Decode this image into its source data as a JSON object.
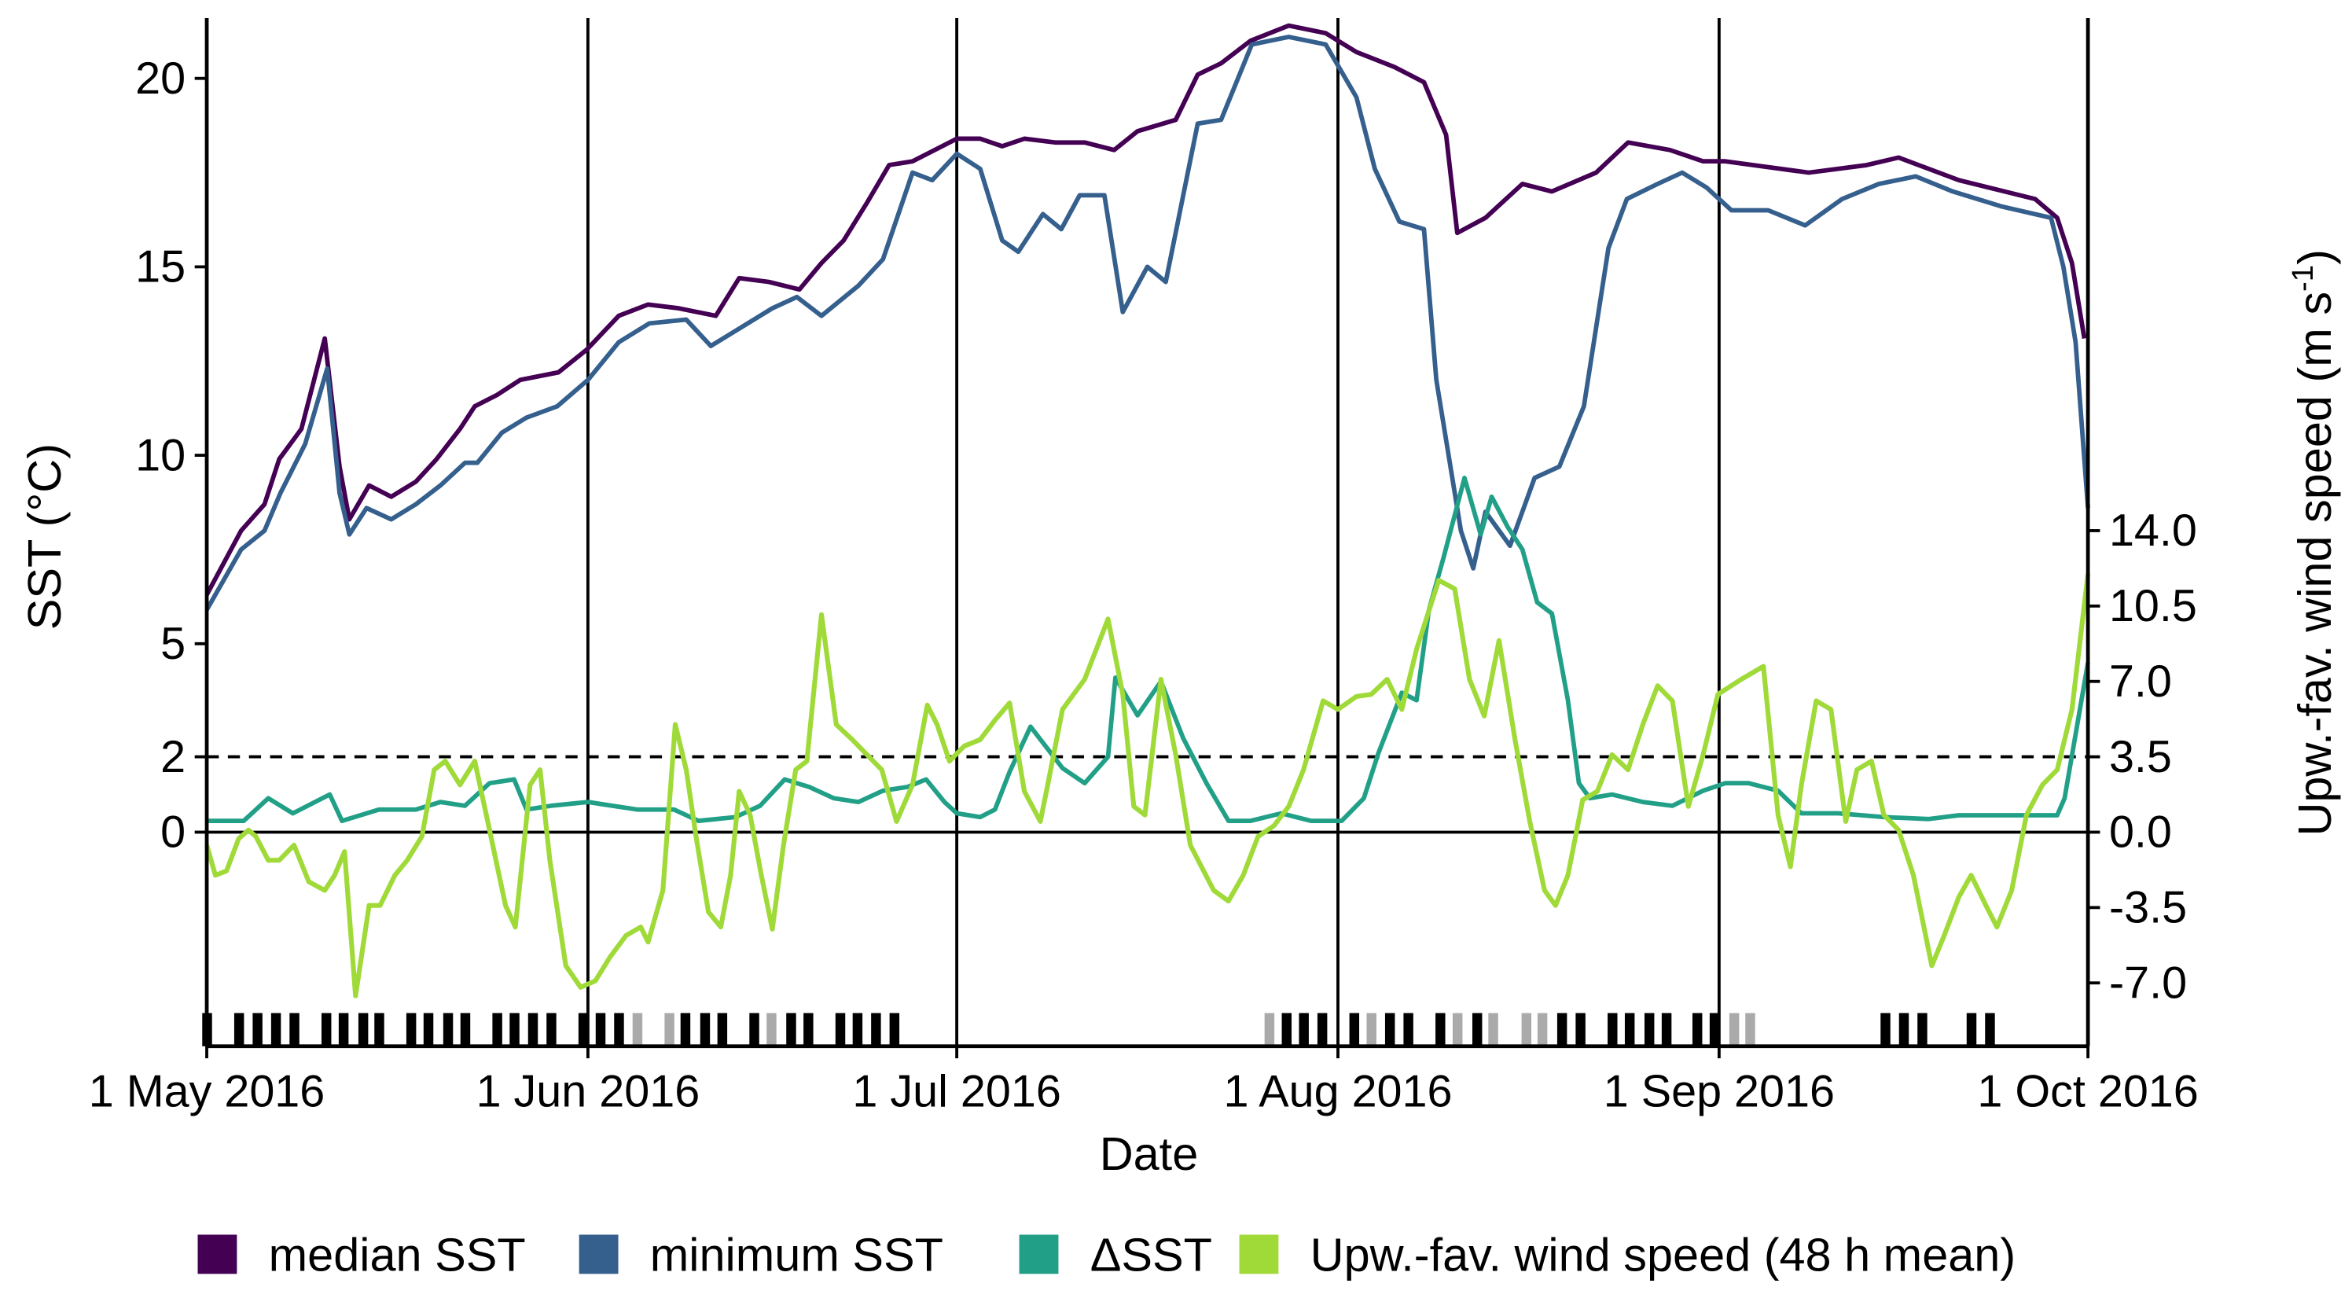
{
  "chart_data": {
    "type": "line",
    "xlabel": "Date",
    "ylabel_left": "SST (°C)",
    "ylabel_right": "Upw.-fav. wind speed (m s",
    "ylabel_right_sup": "-1",
    "ylabel_right_close": ")",
    "x_unit": "days since 1 May 2016",
    "xlim": [
      0,
      153
    ],
    "ylim_left": [
      -4.8,
      22
    ],
    "ylim_right": [
      -9.7,
      38
    ],
    "x_ticks": [
      {
        "day": 0,
        "label": "1 May 2016"
      },
      {
        "day": 31,
        "label": "1 Jun 2016"
      },
      {
        "day": 61,
        "label": "1 Jul 2016"
      },
      {
        "day": 92,
        "label": "1 Aug 2016"
      },
      {
        "day": 123,
        "label": "1 Sep 2016"
      },
      {
        "day": 153,
        "label": "1 Oct 2016"
      }
    ],
    "y_ticks_left": [
      {
        "value": 0,
        "label": "0"
      },
      {
        "value": 2,
        "label": "2"
      },
      {
        "value": 5,
        "label": "5"
      },
      {
        "value": 10,
        "label": "10"
      },
      {
        "value": 15,
        "label": "15"
      },
      {
        "value": 20,
        "label": "20"
      }
    ],
    "y_ticks_right": [
      {
        "value": 14,
        "label": "14.0"
      },
      {
        "value": 10.5,
        "label": "10.5"
      },
      {
        "value": 7,
        "label": "7.0"
      },
      {
        "value": 3.5,
        "label": "3.5"
      },
      {
        "value": 0,
        "label": "0.0"
      },
      {
        "value": -3.5,
        "label": "-3.5"
      },
      {
        "value": -7,
        "label": "-7.0"
      }
    ],
    "threshold_sst": 2,
    "grid": "vertical lines at month starts",
    "legend_position": "bottom",
    "series": [
      {
        "name": "median SST",
        "axis": "left",
        "color": "#440154",
        "x": [
          0,
          2.8,
          4.7,
          5.9,
          7.7,
          9.6,
          10.8,
          11.6,
          13.2,
          15,
          17,
          18.7,
          20.6,
          21.8,
          23.6,
          25.5,
          28.6,
          30.9,
          33.5,
          35.9,
          38.4,
          41.4,
          43.3,
          45.7,
          48.2,
          50,
          51.8,
          53.7,
          55.5,
          57.4,
          59.2,
          61,
          62.9,
          64.7,
          66.5,
          69,
          71.4,
          73.8,
          75.7,
          78.8,
          80.6,
          82.5,
          84.9,
          88,
          91,
          93.5,
          96.6,
          99,
          100.8,
          101.7,
          104,
          107,
          109.4,
          113,
          115.6,
          119,
          121.7,
          123.5,
          130.3,
          135,
          137.6,
          142.5,
          148.7,
          150.5,
          151.7,
          152.7
        ],
        "y": [
          6.3,
          8.0,
          8.7,
          9.9,
          10.7,
          13.1,
          9.7,
          8.3,
          9.2,
          8.9,
          9.3,
          9.9,
          10.7,
          11.3,
          11.6,
          12.0,
          12.2,
          12.8,
          13.7,
          14.0,
          13.9,
          13.7,
          14.7,
          14.6,
          14.4,
          15.1,
          15.7,
          16.7,
          17.7,
          17.8,
          18.1,
          18.4,
          18.4,
          18.2,
          18.4,
          18.3,
          18.3,
          18.1,
          18.6,
          18.9,
          20.1,
          20.4,
          21.0,
          21.4,
          21.2,
          20.7,
          20.3,
          19.9,
          18.5,
          15.9,
          16.3,
          17.2,
          17.0,
          17.5,
          18.3,
          18.1,
          17.8,
          17.8,
          17.5,
          17.7,
          17.9,
          17.3,
          16.8,
          16.3,
          15.1,
          13.1
        ]
      },
      {
        "name": "minimum SST",
        "axis": "left",
        "color": "#355F8D",
        "x": [
          0,
          2.8,
          4.7,
          6,
          8,
          9.8,
          10.8,
          11.6,
          13,
          15,
          17,
          19,
          21,
          22,
          24,
          26,
          28.5,
          31,
          33.5,
          36,
          39,
          41,
          43,
          46,
          48,
          50,
          53,
          55,
          57.4,
          59,
          61,
          62.9,
          64.7,
          66,
          68,
          69.5,
          71,
          73,
          74.5,
          76.5,
          78,
          80.6,
          82.5,
          85,
          88,
          91,
          93.5,
          95,
          97,
          99,
          100,
          102,
          103,
          104,
          106,
          108,
          110,
          112,
          114,
          115.5,
          118,
          120,
          122,
          124,
          127,
          130,
          133,
          136,
          139,
          142,
          146,
          150,
          151,
          152,
          153
        ],
        "y": [
          5.9,
          7.5,
          8.0,
          9.0,
          10.3,
          12.3,
          9.0,
          7.9,
          8.6,
          8.3,
          8.7,
          9.2,
          9.8,
          9.8,
          10.6,
          11.0,
          11.3,
          12.0,
          13.0,
          13.5,
          13.6,
          12.9,
          13.3,
          13.9,
          14.2,
          13.7,
          14.5,
          15.2,
          17.5,
          17.3,
          18.0,
          17.6,
          15.7,
          15.4,
          16.4,
          16.0,
          16.9,
          16.9,
          13.8,
          15.0,
          14.6,
          18.8,
          18.9,
          20.9,
          21.1,
          20.9,
          19.5,
          17.6,
          16.2,
          16.0,
          12.0,
          8.0,
          7.0,
          8.5,
          7.6,
          9.4,
          9.7,
          11.3,
          15.5,
          16.8,
          17.2,
          17.5,
          17.1,
          16.5,
          16.5,
          16.1,
          16.8,
          17.2,
          17.4,
          17.0,
          16.6,
          16.3,
          15.0,
          13.0,
          8.6
        ]
      },
      {
        "name": "ΔSST",
        "axis": "left",
        "color": "#21A087",
        "x": [
          0,
          3,
          5,
          7,
          10,
          11,
          14,
          17,
          19,
          21,
          23,
          25,
          26,
          28,
          31,
          35,
          38,
          40,
          43,
          45,
          47,
          49,
          51,
          53,
          55,
          57,
          58.5,
          60,
          61,
          62.9,
          64.1,
          65.3,
          67,
          69.6,
          71.4,
          73.3,
          73.9,
          75.7,
          77.6,
          79.4,
          81.3,
          83.1,
          84.9,
          87.4,
          89.8,
          92.3,
          94.1,
          95.3,
          97.2,
          98.4,
          99.4,
          100.6,
          102.3,
          103.6,
          104.5,
          105.8,
          107,
          108.2,
          109.4,
          110.7,
          111.6,
          112.5,
          114.3,
          116.8,
          119.2,
          121.7,
          123.5,
          125.4,
          127.8,
          129.7,
          132.7,
          136.4,
          140,
          142.5,
          146.2,
          150.5,
          151.1,
          153
        ],
        "y": [
          0.3,
          0.3,
          0.9,
          0.5,
          1.0,
          0.3,
          0.6,
          0.6,
          0.8,
          0.7,
          1.3,
          1.4,
          0.6,
          0.7,
          0.8,
          0.6,
          0.6,
          0.3,
          0.4,
          0.7,
          1.4,
          1.2,
          0.9,
          0.8,
          1.1,
          1.2,
          1.4,
          0.8,
          0.5,
          0.4,
          0.6,
          1.6,
          2.8,
          1.7,
          1.3,
          2.0,
          4.1,
          3.1,
          4.0,
          2.5,
          1.3,
          0.3,
          0.3,
          0.5,
          0.3,
          0.3,
          0.9,
          2.1,
          3.7,
          3.5,
          5.9,
          7.3,
          9.4,
          7.9,
          8.9,
          8.1,
          7.5,
          6.1,
          5.8,
          3.5,
          1.3,
          0.9,
          1.0,
          0.8,
          0.7,
          1.1,
          1.3,
          1.3,
          1.1,
          0.5,
          0.5,
          0.4,
          0.35,
          0.45,
          0.45,
          0.45,
          0.9,
          4.5
        ]
      },
      {
        "name": "Upw.-fav. wind speed (48 h mean)",
        "axis": "right",
        "color": "#A0DA39",
        "x": [
          0,
          0.7,
          1.6,
          2.6,
          3.4,
          4.0,
          5.0,
          5.9,
          7.1,
          8.3,
          9.6,
          10.4,
          11.2,
          12.1,
          13.2,
          14.1,
          15.3,
          16.3,
          17.5,
          18.5,
          19.4,
          20.6,
          21.8,
          23.0,
          24.3,
          25.1,
          26.3,
          27.1,
          27.9,
          29.2,
          30.4,
          31.6,
          32.8,
          34.1,
          35.3,
          35.9,
          37.1,
          38.1,
          39.0,
          39.8,
          40.8,
          41.8,
          42.6,
          43.3,
          44.2,
          45.1,
          46.0,
          46.9,
          47.9,
          48.8,
          50.0,
          51.2,
          52.5,
          53.7,
          54.9,
          56.1,
          57.4,
          58.6,
          59.4,
          60.4,
          61.6,
          62.9,
          64.1,
          65.3,
          66.5,
          67.8,
          68.4,
          69.6,
          71.4,
          73.3,
          74.5,
          75.4,
          76.3,
          77.6,
          78.8,
          80.0,
          81.9,
          83.1,
          84.3,
          85.5,
          86.8,
          88.0,
          89.2,
          90.8,
          92.0,
          93.5,
          94.7,
          96.0,
          97.2,
          98.4,
          100.2,
          101.5,
          102.7,
          103.9,
          105.1,
          106.4,
          107.6,
          108.8,
          109.7,
          110.7,
          111.9,
          113.1,
          114.3,
          115.6,
          116.8,
          118.0,
          119.2,
          120.5,
          121.7,
          122.9,
          124.8,
          126.6,
          127.8,
          128.8,
          129.7,
          130.9,
          132.1,
          133.3,
          134.2,
          135.4,
          136.4,
          137.6,
          138.8,
          140.3,
          141.3,
          142.5,
          143.5,
          144.7,
          145.6,
          146.8,
          148.0,
          149.3,
          150.5,
          151.7,
          153
        ],
        "y": [
          -0.6,
          -2.0,
          -1.8,
          -0.3,
          0.1,
          -0.2,
          -1.3,
          -1.3,
          -0.6,
          -2.3,
          -2.7,
          -2.0,
          -0.9,
          -7.6,
          -3.4,
          -3.4,
          -2.0,
          -1.3,
          -0.2,
          2.9,
          3.3,
          2.2,
          3.3,
          0.1,
          -3.4,
          -4.4,
          2.2,
          2.9,
          -1.3,
          -6.2,
          -7.2,
          -6.9,
          -5.8,
          -4.8,
          -4.4,
          -5.1,
          -2.7,
          5.0,
          2.9,
          -0.2,
          -3.7,
          -4.4,
          -2.0,
          1.9,
          0.8,
          -2.0,
          -4.5,
          -0.6,
          2.9,
          3.3,
          10.1,
          5.0,
          4.3,
          3.6,
          2.9,
          0.5,
          2.2,
          5.9,
          5.0,
          3.3,
          4.0,
          4.3,
          5.2,
          6.0,
          1.9,
          0.5,
          2.2,
          5.7,
          7.1,
          9.9,
          6.4,
          1.2,
          0.8,
          7.1,
          3.6,
          -0.6,
          -2.7,
          -3.2,
          -2.0,
          -0.2,
          0.3,
          1.2,
          2.9,
          6.1,
          5.7,
          6.3,
          6.4,
          7.1,
          5.7,
          8.5,
          11.7,
          11.3,
          7.1,
          5.4,
          8.9,
          4.3,
          0.5,
          -2.7,
          -3.4,
          -2.0,
          1.5,
          1.9,
          3.6,
          2.9,
          5.0,
          6.8,
          6.1,
          1.2,
          3.6,
          6.4,
          7.1,
          7.7,
          0.8,
          -1.6,
          2.2,
          6.1,
          5.7,
          0.5,
          2.9,
          3.3,
          0.8,
          0.1,
          -2.0,
          -6.2,
          -4.8,
          -3.0,
          -2.0,
          -3.4,
          -4.4,
          -2.7,
          0.8,
          2.2,
          2.9,
          5.7,
          12.0
        ]
      }
    ],
    "event_markers": {
      "days": [
        0,
        2.6,
        4.1,
        5.6,
        7.1,
        9.7,
        11.1,
        12.7,
        14.0,
        16.6,
        18.0,
        19.6,
        21.0,
        23.6,
        25.0,
        26.5,
        28.0,
        30.6,
        32.0,
        33.5,
        35.0,
        37.6,
        38.9,
        40.5,
        41.9,
        44.5,
        45.9,
        47.5,
        48.9,
        51.5,
        52.9,
        54.4,
        55.9,
        86.4,
        87.8,
        89.2,
        90.7,
        93.3,
        94.7,
        96.2,
        97.7,
        100.3,
        101.7,
        103.3,
        104.6,
        107.3,
        108.6,
        110.2,
        111.7,
        114.3,
        115.7,
        117.3,
        118.7,
        121.2,
        122.6,
        124.2,
        125.5,
        136.5,
        138.0,
        139.5,
        143.5,
        145.0
      ],
      "kind": [
        "b",
        "b",
        "b",
        "b",
        "b",
        "b",
        "b",
        "b",
        "b",
        "b",
        "b",
        "b",
        "b",
        "b",
        "b",
        "b",
        "b",
        "b",
        "b",
        "b",
        "g",
        "g",
        "b",
        "b",
        "b",
        "b",
        "g",
        "b",
        "b",
        "b",
        "b",
        "b",
        "b",
        "g",
        "b",
        "b",
        "b",
        "b",
        "g",
        "b",
        "b",
        "b",
        "g",
        "b",
        "g",
        "g",
        "g",
        "b",
        "b",
        "b",
        "b",
        "b",
        "b",
        "b",
        "b",
        "g",
        "g",
        "b",
        "b",
        "b",
        "b",
        "b"
      ],
      "colors": {
        "b": "#000000",
        "g": "#AAAAAA"
      }
    }
  }
}
